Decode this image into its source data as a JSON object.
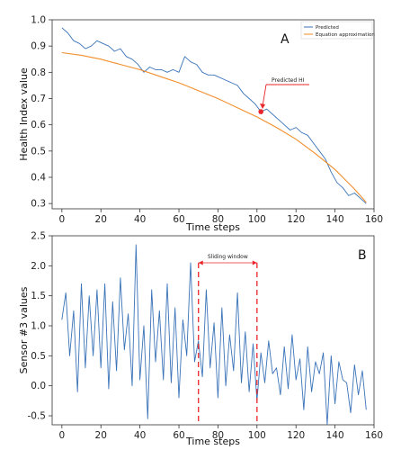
{
  "chart_data": [
    {
      "type": "line",
      "panel_label": "A",
      "xlabel": "Time steps",
      "ylabel": "Health Index value",
      "xlim": [
        -5,
        160
      ],
      "ylim": [
        0.28,
        1.0
      ],
      "xticks": [
        0,
        20,
        40,
        60,
        80,
        100,
        120,
        140,
        160
      ],
      "yticks": [
        0.3,
        0.4,
        0.5,
        0.6,
        0.7,
        0.8,
        0.9,
        1.0
      ],
      "legend_position": "top-right",
      "colors": {
        "predicted": "#3a73b8",
        "approximation": "#f28e2b",
        "marker": "#e8262b"
      },
      "annotation": {
        "text": "Predicted HI",
        "x": 102,
        "y": 0.65
      },
      "series": [
        {
          "name": "Predicted",
          "x": [
            0,
            3,
            6,
            9,
            12,
            15,
            18,
            21,
            24,
            27,
            30,
            33,
            36,
            39,
            42,
            45,
            48,
            51,
            54,
            57,
            60,
            63,
            66,
            69,
            72,
            75,
            78,
            81,
            84,
            87,
            90,
            93,
            96,
            99,
            102,
            105,
            108,
            111,
            114,
            117,
            120,
            123,
            126,
            129,
            132,
            135,
            138,
            141,
            144,
            147,
            150,
            153,
            156
          ],
          "y": [
            0.97,
            0.95,
            0.92,
            0.91,
            0.89,
            0.9,
            0.92,
            0.91,
            0.9,
            0.88,
            0.89,
            0.86,
            0.85,
            0.83,
            0.8,
            0.82,
            0.81,
            0.81,
            0.8,
            0.81,
            0.8,
            0.86,
            0.84,
            0.83,
            0.8,
            0.79,
            0.79,
            0.78,
            0.77,
            0.76,
            0.75,
            0.72,
            0.7,
            0.68,
            0.65,
            0.66,
            0.64,
            0.62,
            0.6,
            0.58,
            0.59,
            0.57,
            0.56,
            0.53,
            0.5,
            0.47,
            0.42,
            0.38,
            0.36,
            0.33,
            0.34,
            0.32,
            0.3
          ]
        },
        {
          "name": "Equation approximation",
          "x": [
            0,
            10,
            20,
            30,
            40,
            50,
            60,
            70,
            80,
            90,
            100,
            110,
            120,
            130,
            140,
            150,
            156
          ],
          "y": [
            0.875,
            0.865,
            0.85,
            0.83,
            0.81,
            0.785,
            0.76,
            0.73,
            0.7,
            0.665,
            0.63,
            0.59,
            0.545,
            0.49,
            0.43,
            0.355,
            0.305
          ]
        }
      ]
    },
    {
      "type": "line",
      "panel_label": "B",
      "xlabel": "Time steps",
      "ylabel": "Sensor #3 values",
      "xlim": [
        -5,
        160
      ],
      "ylim": [
        -0.65,
        2.5
      ],
      "xticks": [
        0,
        20,
        40,
        60,
        80,
        100,
        120,
        140,
        160
      ],
      "yticks": [
        -0.5,
        0.0,
        0.5,
        1.0,
        1.5,
        2.0,
        2.5
      ],
      "colors": {
        "series": "#3a73b8",
        "window": "#e8262b"
      },
      "window": {
        "label": "Sliding window",
        "start": 70,
        "end": 100
      },
      "series": [
        {
          "name": "",
          "x": [
            0,
            2,
            4,
            6,
            8,
            10,
            12,
            14,
            16,
            18,
            20,
            22,
            24,
            26,
            28,
            30,
            32,
            34,
            36,
            38,
            40,
            42,
            44,
            46,
            48,
            50,
            52,
            54,
            56,
            58,
            60,
            62,
            64,
            66,
            68,
            70,
            72,
            74,
            76,
            78,
            80,
            82,
            84,
            86,
            88,
            90,
            92,
            94,
            96,
            98,
            100,
            102,
            104,
            106,
            108,
            110,
            112,
            114,
            116,
            118,
            120,
            122,
            124,
            126,
            128,
            130,
            132,
            134,
            136,
            138,
            140,
            142,
            144,
            146,
            148,
            150,
            152,
            154,
            156
          ],
          "y": [
            1.1,
            1.55,
            0.5,
            1.25,
            -0.1,
            1.7,
            0.3,
            1.5,
            0.5,
            1.6,
            0.3,
            1.7,
            -0.05,
            1.4,
            0.25,
            1.8,
            0.6,
            1.2,
            0.0,
            2.35,
            0.1,
            1.0,
            -0.55,
            1.6,
            0.4,
            1.25,
            0.1,
            1.7,
            0.05,
            1.3,
            -0.2,
            1.1,
            0.5,
            2.05,
            0.4,
            0.75,
            0.15,
            1.6,
            0.3,
            1.05,
            -0.2,
            1.3,
            0.0,
            0.85,
            0.25,
            1.55,
            0.05,
            0.9,
            -0.1,
            0.7,
            -0.25,
            0.55,
            0.05,
            0.75,
            0.2,
            0.3,
            -0.15,
            0.65,
            -0.05,
            0.85,
            0.1,
            0.45,
            -0.4,
            0.65,
            -0.1,
            0.4,
            0.2,
            0.55,
            -0.65,
            0.5,
            -0.3,
            0.4,
            0.1,
            0.05,
            -0.45,
            0.35,
            -0.15,
            0.25,
            -0.4
          ]
        }
      ]
    }
  ]
}
